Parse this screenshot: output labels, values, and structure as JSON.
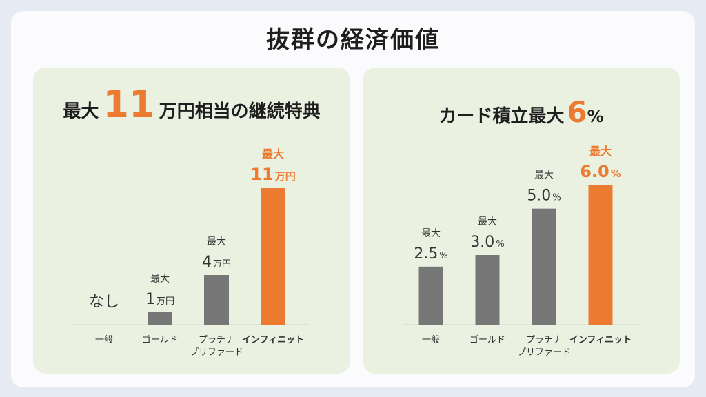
{
  "title": "抜群の経済価値",
  "left_panel": {
    "heading_prefix": "最大",
    "heading_number": "11",
    "heading_suffix": "万円相当の継続特典"
  },
  "right_panel": {
    "heading_prefix": "カード積立最大",
    "heading_number": "6",
    "heading_suffix": "%"
  },
  "colors": {
    "highlight": "#ec7a30",
    "bar": "#777777",
    "panel": "#eaf1e1"
  },
  "chart_data": [
    {
      "type": "bar",
      "title": "最大11万円相当の継続特典",
      "unit": "万円",
      "categories": [
        "一般",
        "ゴールド",
        "プラチナ\nプリファード",
        "インフィニット"
      ],
      "values": [
        0,
        1,
        4,
        11
      ],
      "value_labels": [
        {
          "prefix": "",
          "number": "なし",
          "unit": ""
        },
        {
          "prefix": "最大",
          "number": "1",
          "unit": "万円"
        },
        {
          "prefix": "最大",
          "number": "4",
          "unit": "万円"
        },
        {
          "prefix": "最大",
          "number": "11",
          "unit": "万円"
        }
      ],
      "highlight_index": 3,
      "ylim": [
        0,
        11
      ]
    },
    {
      "type": "bar",
      "title": "カード積立最大6%",
      "unit": "%",
      "categories": [
        "一般",
        "ゴールド",
        "プラチナ\nプリファード",
        "インフィニット"
      ],
      "values": [
        2.5,
        3.0,
        5.0,
        6.0
      ],
      "value_labels": [
        {
          "prefix": "最大",
          "number": "2.5",
          "unit": "%"
        },
        {
          "prefix": "最大",
          "number": "3.0",
          "unit": "%"
        },
        {
          "prefix": "最大",
          "number": "5.0",
          "unit": "%"
        },
        {
          "prefix": "最大",
          "number": "6.0",
          "unit": "%"
        }
      ],
      "highlight_index": 3,
      "ylim": [
        0,
        6.0
      ]
    }
  ]
}
